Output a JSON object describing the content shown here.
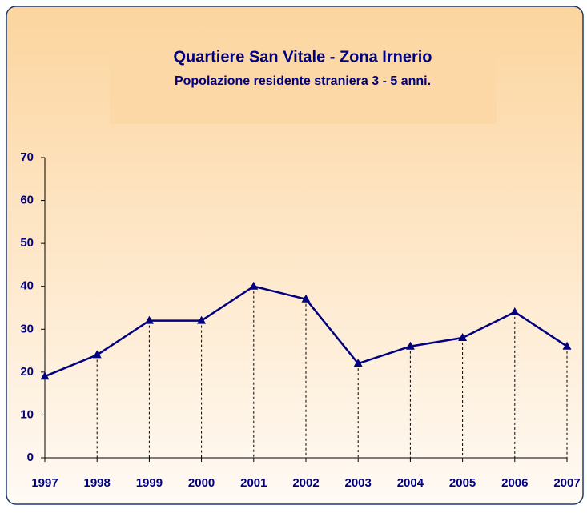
{
  "chart_data": {
    "type": "line",
    "title": "Quartiere San Vitale - Zona Irnerio",
    "subtitle": "Popolazione residente straniera 3 - 5 anni.",
    "categories": [
      "1997",
      "1998",
      "1999",
      "2000",
      "2001",
      "2002",
      "2003",
      "2004",
      "2005",
      "2006",
      "2007"
    ],
    "values": [
      19,
      24,
      32,
      32,
      40,
      37,
      22,
      26,
      28,
      34,
      26
    ],
    "color": "#000080",
    "ylim": [
      0,
      70
    ],
    "yticks": [
      0,
      10,
      20,
      30,
      40,
      50,
      60,
      70
    ],
    "grid": false
  }
}
